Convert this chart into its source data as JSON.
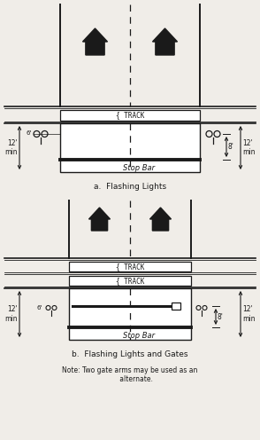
{
  "bg_color": "#f0ede8",
  "line_color": "#1a1a1a",
  "fig_width": 2.94,
  "fig_height": 4.96,
  "dpi": 100,
  "title_a": "a.  Flashing Lights",
  "title_b": "b.  Flashing Lights and Gates",
  "note_line1": "Note: Two gate arms may be used as an",
  "note_line2": "      alternate.",
  "label_12min": "12'\nmin",
  "label_8": "8'",
  "label_track": "{ TRACK",
  "label_stopbar": "Stop Bar"
}
